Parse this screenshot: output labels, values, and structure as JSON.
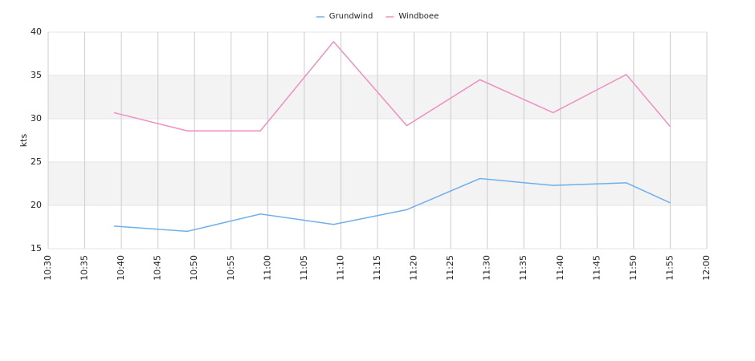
{
  "chart_data": {
    "type": "line",
    "y_label": "kts",
    "x": [
      "10:39",
      "10:49",
      "10:59",
      "11:09",
      "11:19",
      "11:29",
      "11:39",
      "11:49",
      "11:55"
    ],
    "series": [
      {
        "name": "Grundwind",
        "color": "#6fb0ec",
        "values": [
          17.6,
          17.0,
          19.0,
          17.8,
          19.5,
          23.1,
          22.3,
          22.6,
          20.3
        ]
      },
      {
        "name": "Windboee",
        "color": "#f08fbf",
        "values": [
          30.7,
          28.6,
          28.6,
          38.9,
          29.2,
          34.5,
          30.7,
          35.1,
          29.1
        ]
      }
    ],
    "xlim": [
      "10:30",
      "12:00"
    ],
    "xticks": [
      "10:30",
      "10:35",
      "10:40",
      "10:45",
      "10:50",
      "10:55",
      "11:00",
      "11:05",
      "11:10",
      "11:15",
      "11:20",
      "11:25",
      "11:30",
      "11:35",
      "11:40",
      "11:45",
      "11:50",
      "11:55",
      "12:00"
    ],
    "ylim": [
      15,
      40
    ],
    "yticks": [
      15,
      20,
      25,
      30,
      35,
      40
    ],
    "grid": true
  }
}
